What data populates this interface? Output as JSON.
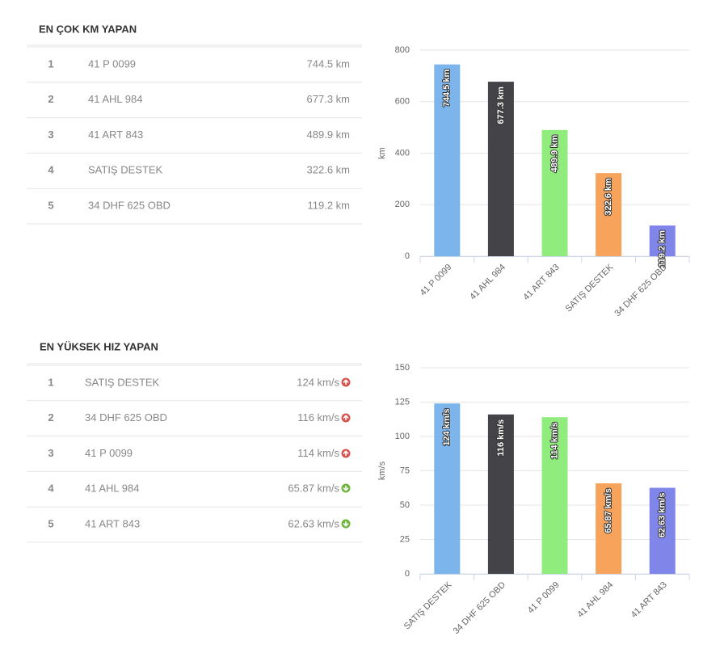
{
  "tables": [
    {
      "title": "EN ÇOK KM YAPAN",
      "rows": [
        [
          "1",
          "41 P 0099",
          "744.5 km"
        ],
        [
          "2",
          "41 AHL 984",
          "677.3 km"
        ],
        [
          "3",
          "41 ART 843",
          "489.9 km"
        ],
        [
          "4",
          "SATIŞ DESTEK",
          "322.6 km"
        ],
        [
          "5",
          "34 DHF 625 OBD",
          "119.2 km"
        ]
      ]
    },
    {
      "title": "EN YÜKSEK HIZ YAPAN",
      "rows": [
        [
          "1",
          "SATIŞ DESTEK",
          "124 km/s"
        ],
        [
          "2",
          "34 DHF 625 OBD",
          "116 km/s"
        ],
        [
          "3",
          "41 P 0099",
          "114 km/s"
        ],
        [
          "4",
          "41 AHL 984",
          "65.87 km/s"
        ],
        [
          "5",
          "41 ART 843",
          "62.63 km/s"
        ]
      ]
    }
  ],
  "chart_data": [
    {
      "type": "bar",
      "y_label": "km",
      "categories": [
        "41 P 0099",
        "41 AHL 984",
        "41 ART 843",
        "SATIŞ DESTEK",
        "34 DHF 625 OBD"
      ],
      "values": [
        744.5,
        677.3,
        489.9,
        322.6,
        119.2
      ],
      "value_labels": [
        "744.5 km",
        "677.3 km",
        "489.9 km",
        "322.6 km",
        "119.2 km"
      ],
      "colors": [
        "#7cb5ec",
        "#434348",
        "#90ed7d",
        "#f7a35c",
        "#8085e9"
      ],
      "ylim": [
        0,
        800
      ],
      "yticks": [
        0,
        200,
        400,
        600,
        800
      ],
      "grid": true
    },
    {
      "type": "bar",
      "y_label": "km/s",
      "categories": [
        "SATIŞ DESTEK",
        "34 DHF 625 OBD",
        "41 P 0099",
        "41 AHL 984",
        "41 ART 843"
      ],
      "values": [
        124,
        116,
        114,
        65.87,
        62.63
      ],
      "value_labels": [
        "124 km/s",
        "116 km/s",
        "114 km/s",
        "65.87 km/s",
        "62.63 km/s"
      ],
      "colors": [
        "#7cb5ec",
        "#434348",
        "#90ed7d",
        "#f7a35c",
        "#8085e9"
      ],
      "ylim": [
        0,
        150
      ],
      "yticks": [
        0,
        25,
        50,
        75,
        100,
        125,
        150
      ],
      "grid": true
    }
  ]
}
